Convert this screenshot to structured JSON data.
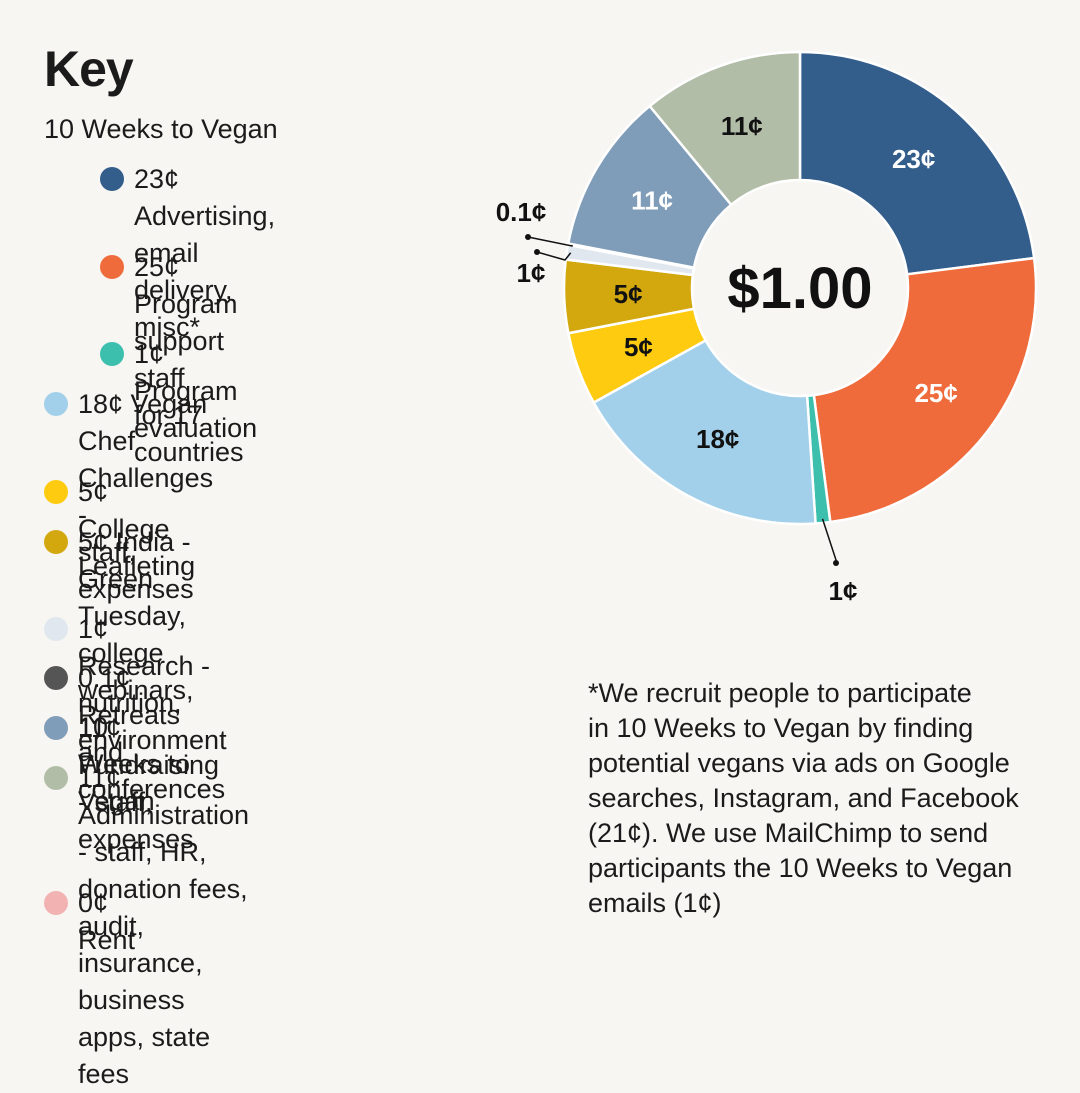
{
  "key_title": "Key",
  "group_heading": "10 Weeks to Vegan",
  "center_label": "$1.00",
  "footnote": "*We recruit people to participate\nin 10 Weeks to Vegan by finding\npotential vegans via ads on Google\nsearches, Instagram, and Facebook\n(21¢). We use MailChimp to send\nparticipants the 10 Weeks to Vegan\nemails (1¢)",
  "legend": [
    {
      "text": "23¢ Advertising, email\ndelivery, misc*",
      "color": "#335d8a"
    },
    {
      "text": "25¢ Program support staff\nfor 17 countries",
      "color": "#ef6b3b"
    },
    {
      "text": "1¢ Program evaluation",
      "color": "#3dbfad"
    },
    {
      "text": "18¢ Vegan Chef Challenges -\nstaff, expenses",
      "color": "#a2d0ea"
    },
    {
      "text": "5¢ College Leafleting",
      "color": "#fecb10"
    },
    {
      "text": "5¢ India - Green Tuesday, college\nwebinars, 10 Weeks to Vegan",
      "color": "#d3a80f"
    },
    {
      "text": "1¢ Research - nutrition, environment",
      "color": "#e1e7ee"
    },
    {
      "text": "0.1¢ Retreats and conferences",
      "color": "#555555"
    },
    {
      "text": "11¢ Fundraising - staff, expenses",
      "color": "#7f9db9"
    },
    {
      "text": "11¢ Administration - staff, HR,\ndonation fees, audit, insurance,\nbusiness apps, state fees",
      "color": "#b2bda8"
    },
    {
      "text": "0¢ Rent",
      "color": "#f2b2b2"
    }
  ],
  "chart_data": {
    "type": "pie",
    "donut": true,
    "total_label": "$1.00",
    "categories": [
      "Advertising, email delivery, misc",
      "Program support staff for 17 countries",
      "Program evaluation",
      "Vegan Chef Challenges",
      "College Leafleting",
      "India - Green Tuesday",
      "Research",
      "Retreats and conferences",
      "Fundraising",
      "Administration",
      "Rent"
    ],
    "values": [
      23,
      25,
      1,
      18,
      5,
      5,
      1,
      0.1,
      11,
      11,
      0
    ],
    "units": "cents",
    "slice_labels": [
      "23¢",
      "25¢",
      "1¢",
      "18¢",
      "5¢",
      "5¢",
      "1¢",
      "0.1¢",
      "11¢",
      "11¢",
      ""
    ],
    "colors": [
      "#335d8a",
      "#ef6b3b",
      "#3dbfad",
      "#a2d0ea",
      "#fecb10",
      "#d3a80f",
      "#e1e7ee",
      "#555555",
      "#7f9db9",
      "#b2bda8",
      "#f2b2b2"
    ],
    "label_colors": [
      "#ffffff",
      "#ffffff",
      "#111111",
      "#111111",
      "#111111",
      "#111111",
      "#111111",
      "#111111",
      "#ffffff",
      "#111111",
      "#111111"
    ]
  }
}
